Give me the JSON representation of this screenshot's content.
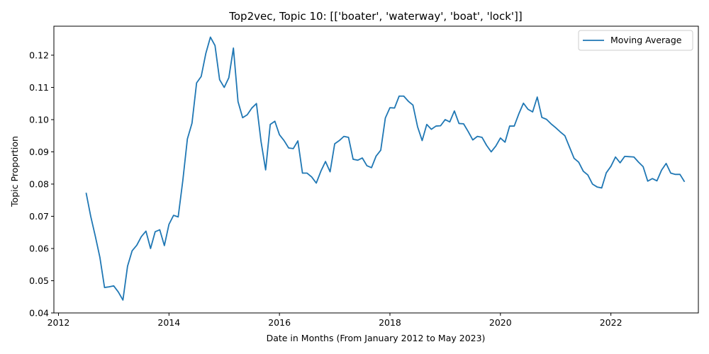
{
  "chart_data": {
    "type": "line",
    "title": "Top2vec, Topic 10: [['boater', 'waterway', 'boat', 'lock']]",
    "xlabel": "Date in Months (From January 2012 to May 2023)",
    "ylabel": "Topic Proportion",
    "xlim": [
      "2011-12",
      "2023-08"
    ],
    "ylim": [
      0.04,
      0.129
    ],
    "x_ticks": [
      "2012",
      "2014",
      "2016",
      "2018",
      "2020",
      "2022"
    ],
    "y_ticks": [
      "0.04",
      "0.05",
      "0.06",
      "0.07",
      "0.08",
      "0.09",
      "0.10",
      "0.11",
      "0.12"
    ],
    "grid": false,
    "legend": {
      "position": "top-right",
      "entries": [
        "Moving Average"
      ]
    },
    "colors": {
      "series": "#1f77b4",
      "axis": "#000000",
      "legend_border": "#cccccc"
    },
    "series": [
      {
        "name": "Moving Average",
        "x": [
          "2012-07",
          "2012-08",
          "2012-09",
          "2012-10",
          "2012-11",
          "2012-12",
          "2013-01",
          "2013-02",
          "2013-03",
          "2013-04",
          "2013-05",
          "2013-06",
          "2013-07",
          "2013-08",
          "2013-09",
          "2013-10",
          "2013-11",
          "2013-12",
          "2014-01",
          "2014-02",
          "2014-03",
          "2014-04",
          "2014-05",
          "2014-06",
          "2014-07",
          "2014-08",
          "2014-09",
          "2014-10",
          "2014-11",
          "2014-12",
          "2015-01",
          "2015-02",
          "2015-03",
          "2015-04",
          "2015-05",
          "2015-06",
          "2015-07",
          "2015-08",
          "2015-09",
          "2015-10",
          "2015-11",
          "2015-12",
          "2016-01",
          "2016-02",
          "2016-03",
          "2016-04",
          "2016-05",
          "2016-06",
          "2016-07",
          "2016-08",
          "2016-09",
          "2016-10",
          "2016-11",
          "2016-12",
          "2017-01",
          "2017-02",
          "2017-03",
          "2017-04",
          "2017-05",
          "2017-06",
          "2017-07",
          "2017-08",
          "2017-09",
          "2017-10",
          "2017-11",
          "2017-12",
          "2018-01",
          "2018-02",
          "2018-03",
          "2018-04",
          "2018-05",
          "2018-06",
          "2018-07",
          "2018-08",
          "2018-09",
          "2018-10",
          "2018-11",
          "2018-12",
          "2019-01",
          "2019-02",
          "2019-03",
          "2019-04",
          "2019-05",
          "2019-06",
          "2019-07",
          "2019-08",
          "2019-09",
          "2019-10",
          "2019-11",
          "2019-12",
          "2020-01",
          "2020-02",
          "2020-03",
          "2020-04",
          "2020-05",
          "2020-06",
          "2020-07",
          "2020-08",
          "2020-09",
          "2020-10",
          "2020-11",
          "2020-12",
          "2021-01",
          "2021-02",
          "2021-03",
          "2021-04",
          "2021-05",
          "2021-06",
          "2021-07",
          "2021-08",
          "2021-09",
          "2021-10",
          "2021-11",
          "2021-12",
          "2022-01",
          "2022-02",
          "2022-03",
          "2022-04",
          "2022-05",
          "2022-06",
          "2022-07",
          "2022-08",
          "2022-09",
          "2022-10",
          "2022-11",
          "2022-12",
          "2023-01",
          "2023-02",
          "2023-03",
          "2023-04",
          "2023-05"
        ],
        "y": [
          0.0773,
          0.07,
          0.0638,
          0.0572,
          0.0479,
          0.0481,
          0.0484,
          0.0465,
          0.044,
          0.0545,
          0.0593,
          0.061,
          0.0637,
          0.0654,
          0.06,
          0.0652,
          0.0658,
          0.0609,
          0.0675,
          0.0703,
          0.0698,
          0.081,
          0.094,
          0.0989,
          0.1114,
          0.1134,
          0.1205,
          0.1256,
          0.123,
          0.1124,
          0.11,
          0.113,
          0.1222,
          0.1056,
          0.1006,
          0.1015,
          0.1036,
          0.105,
          0.0932,
          0.0844,
          0.0985,
          0.0995,
          0.0953,
          0.0935,
          0.0912,
          0.091,
          0.0934,
          0.0834,
          0.0834,
          0.0822,
          0.0803,
          0.084,
          0.087,
          0.0838,
          0.0925,
          0.0935,
          0.0948,
          0.0945,
          0.0877,
          0.0874,
          0.0881,
          0.0857,
          0.0851,
          0.0887,
          0.0905,
          0.1005,
          0.1037,
          0.1036,
          0.1073,
          0.1073,
          0.1057,
          0.1045,
          0.0978,
          0.0935,
          0.0985,
          0.097,
          0.098,
          0.0981,
          0.1,
          0.0993,
          0.1027,
          0.0988,
          0.0987,
          0.0963,
          0.0937,
          0.0948,
          0.0945,
          0.092,
          0.09,
          0.0918,
          0.0943,
          0.093,
          0.098,
          0.098,
          0.1018,
          0.1051,
          0.1032,
          0.1024,
          0.107,
          0.1007,
          0.1001,
          0.0987,
          0.0975,
          0.0962,
          0.095,
          0.0915,
          0.088,
          0.0868,
          0.084,
          0.0828,
          0.08,
          0.0791,
          0.0788,
          0.0835,
          0.0855,
          0.0884,
          0.0866,
          0.0886,
          0.0885,
          0.0884,
          0.0868,
          0.0854,
          0.0809,
          0.0817,
          0.081,
          0.0843,
          0.0864,
          0.0834,
          0.083,
          0.083,
          0.0807
        ]
      }
    ]
  }
}
